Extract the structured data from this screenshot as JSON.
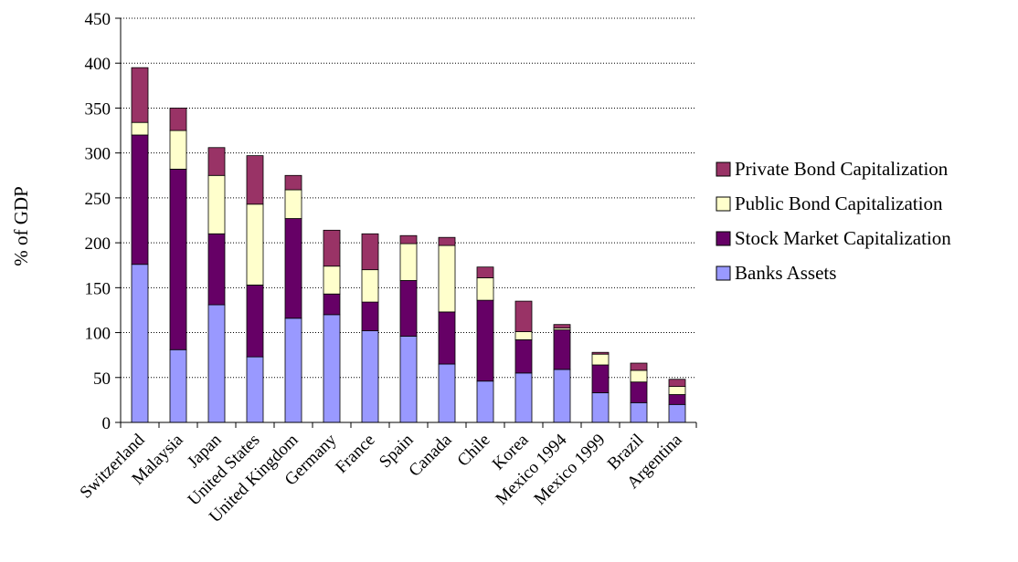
{
  "chart_data": {
    "type": "bar",
    "stacked": true,
    "title": "",
    "xlabel": "",
    "ylabel": "% of GDP",
    "ylim": [
      0,
      450
    ],
    "yticks": [
      0,
      50,
      100,
      150,
      200,
      250,
      300,
      350,
      400,
      450
    ],
    "grid": "horizontal-dotted",
    "legend_position": "right",
    "categories": [
      "Switzerland",
      "Malaysia",
      "Japan",
      "United States",
      "United Kingdom",
      "Germany",
      "France",
      "Spain",
      "Canada",
      "Chile",
      "Korea",
      "Mexico 1994",
      "Mexico 1999",
      "Brazil",
      "Argentina"
    ],
    "series": [
      {
        "name": "Banks Assets",
        "color": "#9999ff",
        "values": [
          176,
          81,
          131,
          73,
          116,
          120,
          102,
          96,
          65,
          46,
          55,
          59,
          33,
          22,
          20
        ]
      },
      {
        "name": "Stock Market Capitalization",
        "color": "#660066",
        "values": [
          144,
          201,
          79,
          80,
          111,
          23,
          32,
          62,
          58,
          90,
          37,
          44,
          31,
          23,
          11
        ]
      },
      {
        "name": "Public Bond Capitalization",
        "color": "#ffffcc",
        "values": [
          14,
          43,
          65,
          90,
          32,
          31,
          36,
          41,
          74,
          25,
          9,
          2,
          12,
          13,
          9
        ]
      },
      {
        "name": "Private Bond Capitalization",
        "color": "#993366",
        "values": [
          61,
          25,
          31,
          54,
          16,
          40,
          40,
          9,
          9,
          12,
          34,
          4,
          2,
          8,
          8
        ]
      }
    ],
    "legend_order": [
      "Private Bond Capitalization",
      "Public Bond Capitalization",
      "Stock Market Capitalization",
      "Banks Assets"
    ]
  }
}
